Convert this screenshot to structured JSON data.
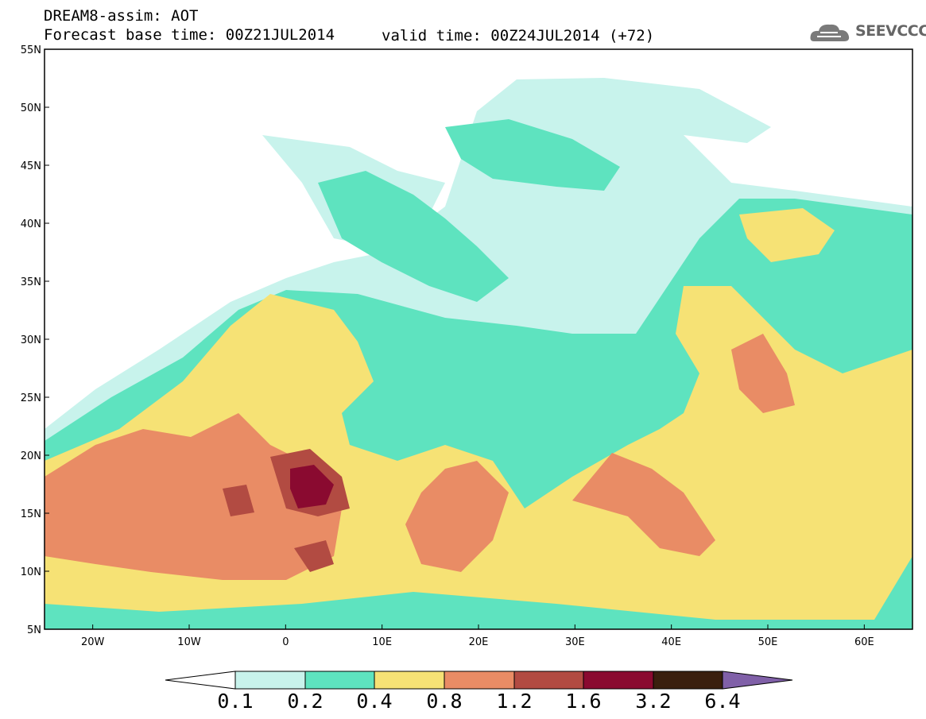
{
  "header": {
    "line1": "DREAM8-assim: AOT",
    "line2": "Forecast base time: 00Z21JUL2014",
    "valid": "valid time: 00Z24JUL2014 (+72)"
  },
  "logo": {
    "text": "SEEVCCC",
    "icon": "cloud-icon"
  },
  "map": {
    "lon_range": [
      -25,
      65
    ],
    "lat_range": [
      5,
      55
    ],
    "lat_ticks": [
      "55N",
      "50N",
      "45N",
      "40N",
      "35N",
      "30N",
      "25N",
      "20N",
      "15N",
      "10N",
      "5N"
    ],
    "lon_ticks": [
      "20W",
      "10W",
      "0",
      "10E",
      "20E",
      "30E",
      "40E",
      "50E",
      "60E"
    ]
  },
  "legend": {
    "levels": [
      "0.1",
      "0.2",
      "0.4",
      "0.8",
      "1.2",
      "1.6",
      "3.2",
      "6.4"
    ],
    "colors": {
      "lt01": "#ffffff",
      "c1": "#c8f3ec",
      "c2": "#5ee3bf",
      "c3": "#f6e275",
      "c4": "#e98c65",
      "c5": "#b24b42",
      "c6": "#8a0a30",
      "c7": "#3a1f0e",
      "gt64": "#8060a8"
    }
  }
}
